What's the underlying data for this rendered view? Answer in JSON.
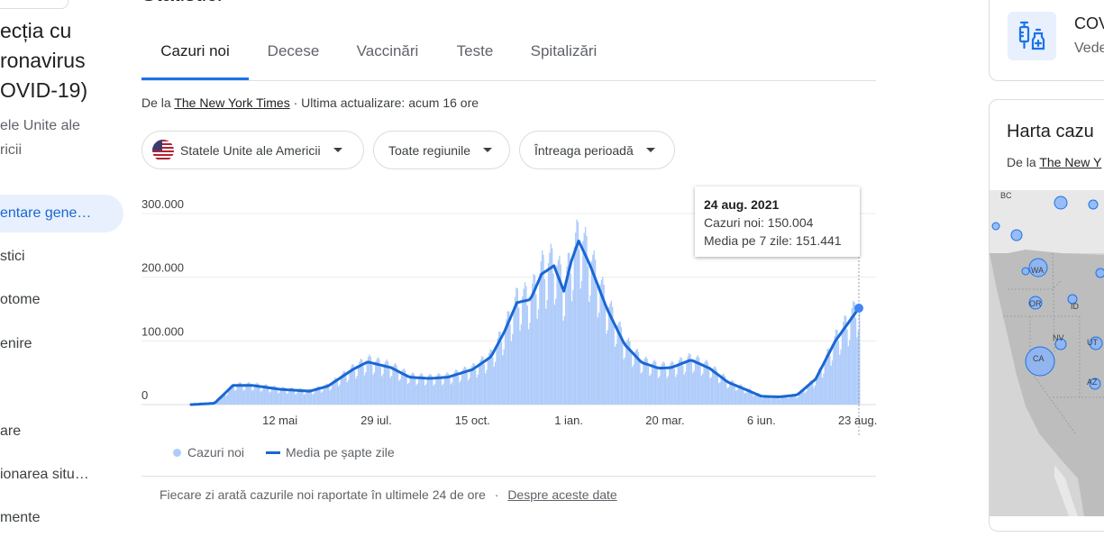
{
  "sidebar": {
    "title": "ecția cu\nronavirus\nOVID-19)",
    "subtitle": "ele Unite ale\nricii",
    "items": [
      {
        "label": "entare gene…"
      },
      {
        "label": "stici"
      },
      {
        "label": "otome"
      },
      {
        "label": "enire"
      },
      {
        "label": "are"
      },
      {
        "label": "ionarea situ…"
      },
      {
        "label": "mente"
      }
    ]
  },
  "main": {
    "title": "Statistici",
    "tabs": [
      {
        "label": "Cazuri noi"
      },
      {
        "label": "Decese"
      },
      {
        "label": "Vaccinări"
      },
      {
        "label": "Teste"
      },
      {
        "label": "Spitalizări"
      }
    ],
    "source_prefix": "De la ",
    "source_name": "The New York Times",
    "source_suffix": " · Ultima actualizare: acum 16 ore",
    "filters": {
      "country": "Statele Unite ale Americii",
      "region": "Toate regiunile",
      "period": "Întreaga perioadă"
    },
    "tooltip": {
      "date": "24 aug. 2021",
      "cases": "Cazuri noi: 150.004",
      "avg": "Media pe 7 zile: 151.441"
    },
    "legend": {
      "cases": "Cazuri noi",
      "avg": "Media pe șapte zile"
    },
    "footnote": "Fiecare zi arată cazurile noi raportate în ultimele 24 de ore",
    "footnote_sep": "·",
    "footnote_link": "Despre aceste date"
  },
  "right": {
    "vaccine_card": {
      "title": "COV",
      "subtitle": "Vede"
    },
    "map_card": {
      "title": "Harta cazu",
      "source_prefix": "De la ",
      "source_name": "The New Y"
    },
    "map_labels": [
      "BC",
      "WA",
      "OR",
      "ID",
      "NV",
      "UT",
      "CA",
      "AZ"
    ]
  },
  "colors": {
    "accent": "#1a73e8",
    "avg_line": "#1967d2",
    "bars": "#aecbfa",
    "nav_active_bg": "#e8f0fe"
  },
  "chart_data": {
    "type": "bar",
    "y_ticks": [
      "300.000",
      "200.000",
      "100.000",
      "0"
    ],
    "x_ticks": [
      "12 mai",
      "29 iul.",
      "15 oct.",
      "1 ian.",
      "20 mar.",
      "6 iun.",
      "23 aug."
    ],
    "ylim": [
      0,
      300000
    ],
    "x_range": [
      "2020-03-01",
      "2021-08-24"
    ],
    "series": [
      {
        "name": "Media pe șapte zile",
        "points": [
          [
            "2020-03-01",
            0
          ],
          [
            "2020-03-20",
            2000
          ],
          [
            "2020-04-04",
            30000
          ],
          [
            "2020-04-20",
            30000
          ],
          [
            "2020-05-12",
            24000
          ],
          [
            "2020-06-05",
            21000
          ],
          [
            "2020-06-20",
            29000
          ],
          [
            "2020-07-10",
            55000
          ],
          [
            "2020-07-22",
            67000
          ],
          [
            "2020-08-10",
            58000
          ],
          [
            "2020-08-25",
            43000
          ],
          [
            "2020-09-10",
            41000
          ],
          [
            "2020-09-25",
            43000
          ],
          [
            "2020-10-15",
            55000
          ],
          [
            "2020-10-30",
            75000
          ],
          [
            "2020-11-10",
            115000
          ],
          [
            "2020-11-20",
            160000
          ],
          [
            "2020-12-01",
            165000
          ],
          [
            "2020-12-10",
            205000
          ],
          [
            "2020-12-20",
            218000
          ],
          [
            "2020-12-28",
            178000
          ],
          [
            "2021-01-03",
            225000
          ],
          [
            "2021-01-09",
            257000
          ],
          [
            "2021-01-18",
            220000
          ],
          [
            "2021-02-01",
            150000
          ],
          [
            "2021-02-15",
            95000
          ],
          [
            "2021-03-01",
            66000
          ],
          [
            "2021-03-15",
            57000
          ],
          [
            "2021-03-25",
            58000
          ],
          [
            "2021-04-10",
            70000
          ],
          [
            "2021-04-25",
            57000
          ],
          [
            "2021-05-10",
            35000
          ],
          [
            "2021-05-25",
            23000
          ],
          [
            "2021-06-06",
            13000
          ],
          [
            "2021-06-20",
            12000
          ],
          [
            "2021-07-05",
            15000
          ],
          [
            "2021-07-20",
            40000
          ],
          [
            "2021-08-05",
            100000
          ],
          [
            "2021-08-24",
            151441
          ]
        ]
      }
    ],
    "highlight": {
      "date": "24 aug. 2021",
      "cases": 150004,
      "avg": 151441
    }
  }
}
